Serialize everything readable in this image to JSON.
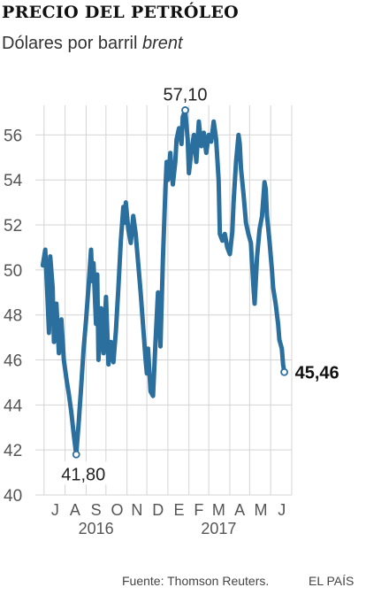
{
  "header": {
    "title": "PRECIO DEL PETRÓLEO",
    "subtitle_prefix": "Dólares por barril ",
    "subtitle_italic": "brent"
  },
  "footer": {
    "source": "Fuente: Thomson Reuters.",
    "brand": "EL PAÍS"
  },
  "chart_data": {
    "type": "line",
    "series": [
      {
        "color": "#2b6f9e",
        "values": [
          [
            2016.49,
            50.2
          ],
          [
            2016.5,
            50.9
          ],
          [
            2016.51,
            48.5
          ],
          [
            2016.515,
            47.2
          ],
          [
            2016.52,
            50.6
          ],
          [
            2016.53,
            49.2
          ],
          [
            2016.535,
            46.8
          ],
          [
            2016.545,
            48.5
          ],
          [
            2016.555,
            46.3
          ],
          [
            2016.565,
            47.8
          ],
          [
            2016.575,
            46.0
          ],
          [
            2016.585,
            45.2
          ],
          [
            2016.595,
            44.5
          ],
          [
            2016.605,
            43.7
          ],
          [
            2016.615,
            42.7
          ],
          [
            2016.625,
            41.8
          ],
          [
            2016.635,
            43.2
          ],
          [
            2016.645,
            44.8
          ],
          [
            2016.655,
            46.5
          ],
          [
            2016.665,
            47.8
          ],
          [
            2016.675,
            49.3
          ],
          [
            2016.685,
            50.9
          ],
          [
            2016.69,
            49.5
          ],
          [
            2016.695,
            50.3
          ],
          [
            2016.705,
            47.6
          ],
          [
            2016.71,
            49.8
          ],
          [
            2016.715,
            46.0
          ],
          [
            2016.725,
            48.3
          ],
          [
            2016.735,
            46.3
          ],
          [
            2016.745,
            48.8
          ],
          [
            2016.755,
            45.8
          ],
          [
            2016.765,
            46.8
          ],
          [
            2016.775,
            45.9
          ],
          [
            2016.785,
            47.3
          ],
          [
            2016.795,
            49.2
          ],
          [
            2016.805,
            51.3
          ],
          [
            2016.815,
            52.8
          ],
          [
            2016.82,
            52.1
          ],
          [
            2016.825,
            53.0
          ],
          [
            2016.835,
            51.8
          ],
          [
            2016.845,
            51.2
          ],
          [
            2016.855,
            52.4
          ],
          [
            2016.865,
            51.6
          ],
          [
            2016.875,
            50.3
          ],
          [
            2016.885,
            49.0
          ],
          [
            2016.895,
            47.5
          ],
          [
            2016.905,
            46.0
          ],
          [
            2016.91,
            45.4
          ],
          [
            2016.915,
            46.5
          ],
          [
            2016.925,
            44.6
          ],
          [
            2016.935,
            44.4
          ],
          [
            2016.945,
            46.8
          ],
          [
            2016.955,
            49.0
          ],
          [
            2016.96,
            48.2
          ],
          [
            2016.965,
            46.6
          ],
          [
            2016.975,
            50.5
          ],
          [
            2016.985,
            53.6
          ],
          [
            2016.99,
            54.8
          ],
          [
            2016.995,
            54.0
          ],
          [
            2017.005,
            55.2
          ],
          [
            2017.01,
            54.4
          ],
          [
            2017.015,
            53.8
          ],
          [
            2017.025,
            54.8
          ],
          [
            2017.03,
            55.8
          ],
          [
            2017.04,
            56.3
          ],
          [
            2017.05,
            55.6
          ],
          [
            2017.055,
            56.8
          ],
          [
            2017.065,
            57.1
          ],
          [
            2017.075,
            55.8
          ],
          [
            2017.08,
            54.3
          ],
          [
            2017.09,
            55.3
          ],
          [
            2017.1,
            56.0
          ],
          [
            2017.11,
            54.8
          ],
          [
            2017.12,
            56.6
          ],
          [
            2017.13,
            55.5
          ],
          [
            2017.14,
            56.1
          ],
          [
            2017.15,
            55.2
          ],
          [
            2017.16,
            56.0
          ],
          [
            2017.17,
            55.7
          ],
          [
            2017.18,
            56.6
          ],
          [
            2017.19,
            55.8
          ],
          [
            2017.2,
            54.0
          ],
          [
            2017.205,
            51.6
          ],
          [
            2017.215,
            51.3
          ],
          [
            2017.225,
            51.6
          ],
          [
            2017.235,
            51.0
          ],
          [
            2017.245,
            50.7
          ],
          [
            2017.255,
            51.7
          ],
          [
            2017.26,
            53.0
          ],
          [
            2017.27,
            54.8
          ],
          [
            2017.28,
            56.0
          ],
          [
            2017.285,
            55.6
          ],
          [
            2017.29,
            54.5
          ],
          [
            2017.3,
            53.4
          ],
          [
            2017.31,
            52.1
          ],
          [
            2017.32,
            51.6
          ],
          [
            2017.33,
            51.2
          ],
          [
            2017.34,
            49.3
          ],
          [
            2017.345,
            48.5
          ],
          [
            2017.355,
            50.6
          ],
          [
            2017.365,
            51.8
          ],
          [
            2017.375,
            52.4
          ],
          [
            2017.385,
            53.9
          ],
          [
            2017.39,
            53.6
          ],
          [
            2017.395,
            52.4
          ],
          [
            2017.405,
            51.3
          ],
          [
            2017.415,
            50.0
          ],
          [
            2017.42,
            49.2
          ],
          [
            2017.43,
            48.5
          ],
          [
            2017.44,
            47.6
          ],
          [
            2017.445,
            46.9
          ],
          [
            2017.455,
            46.5
          ],
          [
            2017.46,
            45.8
          ],
          [
            2017.465,
            45.46
          ]
        ]
      }
    ],
    "x_ticks": [
      {
        "x": 2016.54,
        "label": "J"
      },
      {
        "x": 2016.62,
        "label": "A"
      },
      {
        "x": 2016.705,
        "label": "S"
      },
      {
        "x": 2016.79,
        "label": "O"
      },
      {
        "x": 2016.87,
        "label": "N"
      },
      {
        "x": 2016.955,
        "label": "D"
      },
      {
        "x": 2017.04,
        "label": "E"
      },
      {
        "x": 2017.12,
        "label": "F"
      },
      {
        "x": 2017.2,
        "label": "M"
      },
      {
        "x": 2017.285,
        "label": "A"
      },
      {
        "x": 2017.37,
        "label": "M"
      },
      {
        "x": 2017.455,
        "label": "J"
      }
    ],
    "years": [
      {
        "x": 2016.705,
        "label": "2016"
      },
      {
        "x": 2017.2,
        "label": "2017"
      }
    ],
    "x_boundaries": [
      2016.495,
      2016.58,
      2016.665,
      2016.745,
      2016.83,
      2016.91,
      2016.995,
      2017.08,
      2017.16,
      2017.245,
      2017.325,
      2017.41,
      2017.495
    ],
    "xlim": [
      2016.46,
      2017.495
    ],
    "ylim": [
      40,
      57
    ],
    "y_ticks": [
      40,
      42,
      44,
      46,
      48,
      50,
      52,
      54,
      56
    ],
    "annotations": {
      "max": {
        "x": 2017.065,
        "y": 57.1,
        "label": "57,10"
      },
      "min": {
        "x": 2016.625,
        "y": 41.8,
        "label": "41,80"
      },
      "last": {
        "x": 2017.465,
        "y": 45.46,
        "label": "45,46"
      }
    }
  }
}
